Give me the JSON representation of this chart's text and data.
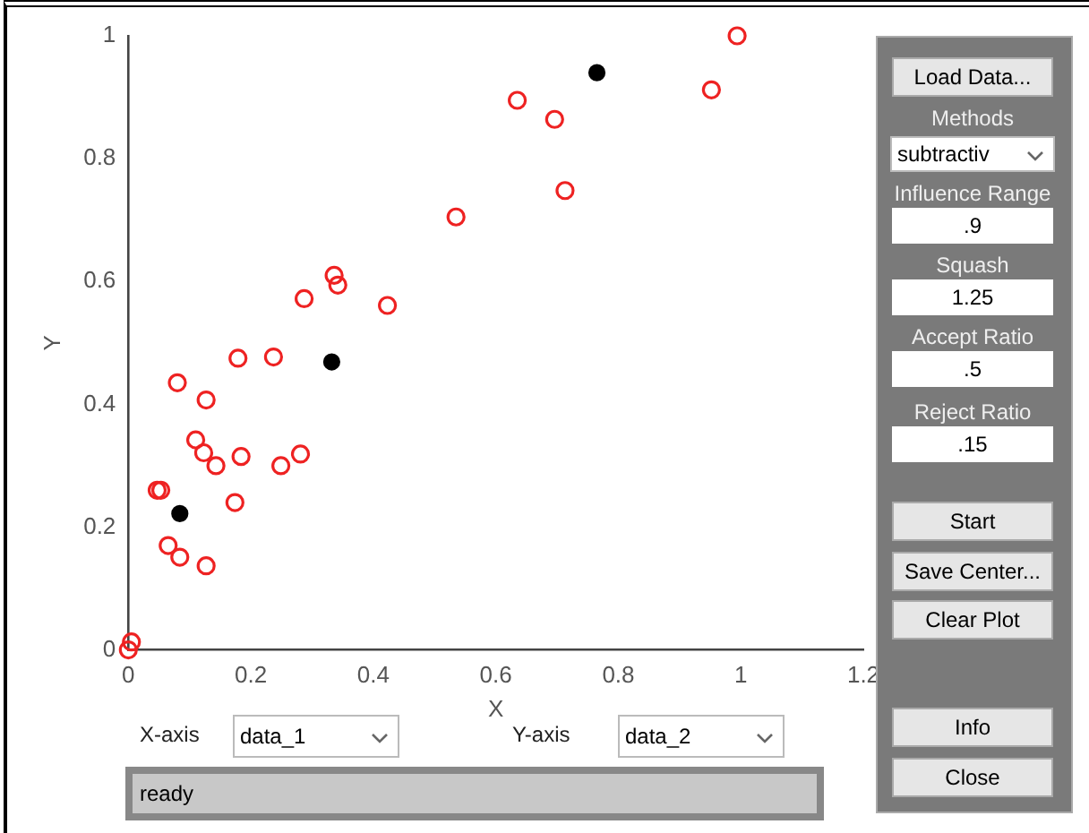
{
  "chart_data": {
    "type": "scatter",
    "xlabel": "X",
    "ylabel": "Y",
    "xlim": [
      0,
      1.2
    ],
    "xticks": [
      0,
      0.2,
      0.4,
      0.6,
      0.8,
      1,
      1.2
    ],
    "ylim": [
      0,
      1
    ],
    "yticks": [
      0,
      0.2,
      0.4,
      0.6,
      0.8,
      1
    ],
    "grid": false,
    "legend": false,
    "marker": "circle",
    "series": [
      {
        "color": "#ee2222",
        "x": [
          0.0,
          0.005,
          0.047,
          0.053,
          0.065,
          0.084,
          0.127,
          0.08,
          0.11,
          0.123,
          0.127,
          0.143,
          0.179,
          0.184,
          0.174,
          0.237,
          0.249,
          0.281,
          0.287,
          0.336,
          0.342,
          0.423,
          0.535,
          0.635,
          0.696,
          0.713,
          0.952,
          0.994
        ],
        "values": [
          0.0,
          0.013,
          0.26,
          0.26,
          0.17,
          0.151,
          0.137,
          0.435,
          0.342,
          0.321,
          0.407,
          0.3,
          0.475,
          0.315,
          0.24,
          0.477,
          0.3,
          0.319,
          0.572,
          0.61,
          0.594,
          0.561,
          0.705,
          0.895,
          0.864,
          0.748,
          0.912,
          1.0
        ]
      },
      {
        "color": "#000000",
        "x": [
          0.084,
          0.332,
          0.765
        ],
        "values": [
          0.222,
          0.469,
          0.94
        ]
      }
    ],
    "annotations": [
      "X-axis",
      "data_1",
      "Y-axis",
      "data_2",
      "ready",
      "Load Data...",
      "Methods",
      "subtractiv",
      "Influence Range",
      ".9",
      "Squash",
      "1.25",
      "Accept Ratio",
      ".5",
      "Reject Ratio",
      ".15",
      "Start",
      "Save Center...",
      "Clear Plot",
      "Info",
      "Close"
    ]
  }
}
